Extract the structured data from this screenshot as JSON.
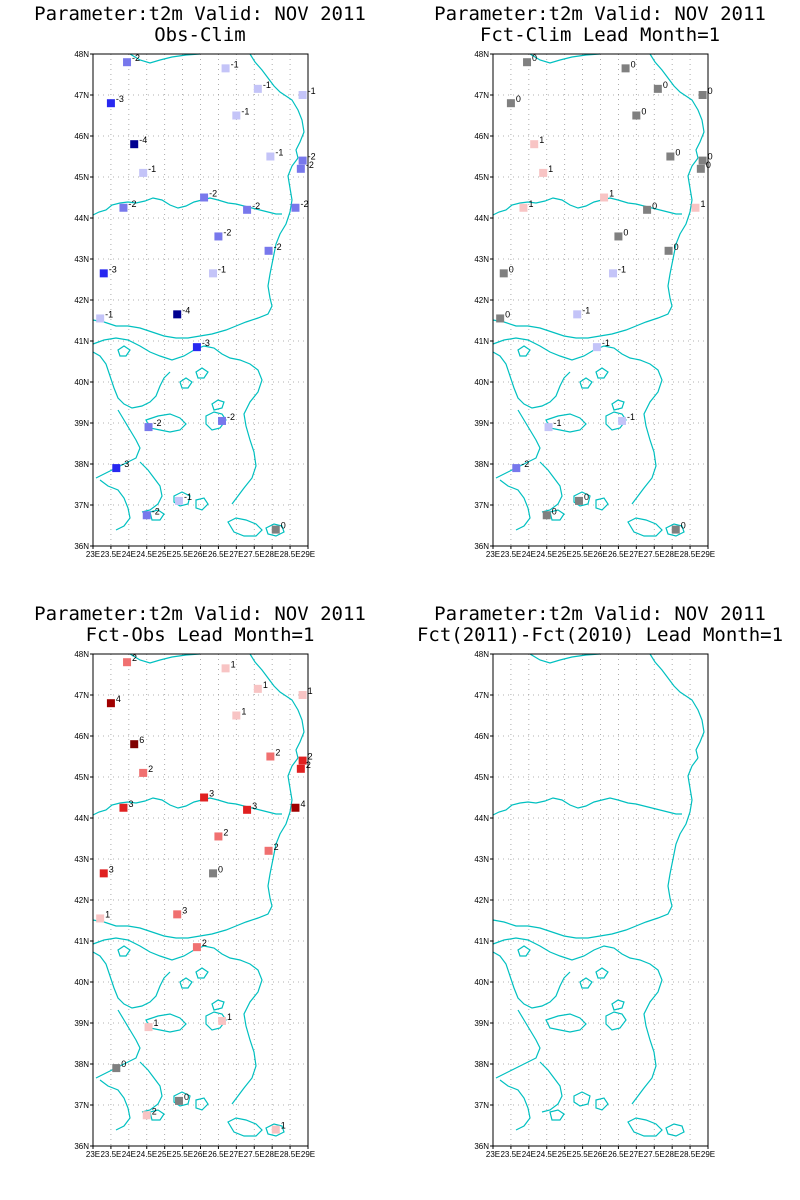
{
  "axes": {
    "lat_labels": [
      "48N",
      "47N",
      "46N",
      "45N",
      "44N",
      "43N",
      "42N",
      "41N",
      "40N",
      "39N",
      "38N",
      "37N",
      "36N"
    ],
    "lon_labels": [
      "23E",
      "23.5E",
      "24E",
      "24.5E",
      "25E",
      "25.5E",
      "26E",
      "26.5E",
      "27E",
      "27.5E",
      "28E",
      "28.5E",
      "29E"
    ],
    "lat_range": [
      36,
      48
    ],
    "lon_range": [
      23,
      29
    ],
    "grid": true
  },
  "colors": {
    "coast": "#00c0c0",
    "grid": "#999999",
    "neutral": "#808080",
    "blue_1": "#c4c4f8",
    "blue_2": "#7878ec",
    "blue_3": "#2828f0",
    "blue_4": "#000090",
    "red_1": "#f8c4c4",
    "red_2": "#f07070",
    "red_3": "#e02020",
    "red_4": "#a00000",
    "red_5": "#800000"
  },
  "stations": [
    {
      "lat": 47.8,
      "lon": 23.95
    },
    {
      "lat": 46.8,
      "lon": 23.5
    },
    {
      "lat": 45.8,
      "lon": 24.15
    },
    {
      "lat": 45.1,
      "lon": 24.4
    },
    {
      "lat": 44.25,
      "lon": 23.85
    },
    {
      "lat": 42.65,
      "lon": 23.3
    },
    {
      "lat": 41.55,
      "lon": 23.2
    },
    {
      "lat": 41.65,
      "lon": 25.35
    },
    {
      "lat": 40.85,
      "lon": 25.9
    },
    {
      "lat": 38.9,
      "lon": 24.55
    },
    {
      "lat": 37.9,
      "lon": 23.65
    },
    {
      "lat": 36.75,
      "lon": 24.5
    },
    {
      "lat": 37.1,
      "lon": 25.4
    },
    {
      "lat": 39.05,
      "lon": 26.6
    },
    {
      "lat": 36.4,
      "lon": 28.1
    },
    {
      "lat": 44.5,
      "lon": 26.1
    },
    {
      "lat": 43.55,
      "lon": 26.5
    },
    {
      "lat": 42.65,
      "lon": 26.35
    },
    {
      "lat": 44.2,
      "lon": 27.3
    },
    {
      "lat": 43.2,
      "lon": 27.9
    },
    {
      "lat": 44.25,
      "lon": 28.65
    },
    {
      "lat": 45.5,
      "lon": 27.95
    },
    {
      "lat": 45.4,
      "lon": 28.85
    },
    {
      "lat": 45.2,
      "lon": 28.8
    },
    {
      "lat": 46.5,
      "lon": 27.0
    },
    {
      "lat": 47.15,
      "lon": 27.6
    },
    {
      "lat": 47.0,
      "lon": 28.85
    },
    {
      "lat": 47.65,
      "lon": 26.7
    }
  ],
  "panels": [
    {
      "title1": "Parameter:t2m Valid: NOV 2011",
      "title2": "Obs-Clim",
      "labels": [
        "-2",
        "-3",
        "-4",
        "-1",
        "-2",
        "-3",
        "-1",
        "-4",
        "-3",
        "-2",
        "-3",
        "-2",
        "-1",
        "-2",
        "0",
        "-2",
        "-2",
        "-1",
        "-2",
        "-2",
        "-2",
        "-1",
        "-2",
        "-2",
        "-1",
        "-1",
        "-1",
        "-1"
      ],
      "colors": [
        "blue_2",
        "blue_3",
        "blue_4",
        "blue_1",
        "blue_2",
        "blue_3",
        "blue_1",
        "blue_4",
        "blue_3",
        "blue_2",
        "blue_3",
        "blue_2",
        "blue_1",
        "blue_2",
        "neutral",
        "blue_2",
        "blue_2",
        "blue_1",
        "blue_2",
        "blue_2",
        "blue_2",
        "blue_1",
        "blue_2",
        "blue_2",
        "blue_1",
        "blue_1",
        "blue_1",
        "blue_1"
      ]
    },
    {
      "title1": "Parameter:t2m Valid: NOV 2011",
      "title2": "Fct-Clim Lead Month=1",
      "labels": [
        "0",
        "0",
        "1",
        "1",
        "1",
        "0",
        "0",
        "-1",
        "-1",
        "-1",
        "-2",
        "0",
        "0",
        "-1",
        "0",
        "1",
        "0",
        "-1",
        "0",
        "0",
        "1",
        "0",
        "0",
        "0",
        "0",
        "0",
        "0",
        "0"
      ],
      "colors": [
        "neutral",
        "neutral",
        "red_1",
        "red_1",
        "red_1",
        "neutral",
        "neutral",
        "blue_1",
        "blue_1",
        "blue_1",
        "blue_2",
        "neutral",
        "neutral",
        "blue_1",
        "neutral",
        "red_1",
        "neutral",
        "blue_1",
        "neutral",
        "neutral",
        "red_1",
        "neutral",
        "neutral",
        "neutral",
        "neutral",
        "neutral",
        "neutral",
        "neutral"
      ]
    },
    {
      "title1": "Parameter:t2m Valid: NOV 2011",
      "title2": "Fct-Obs Lead Month=1",
      "labels": [
        "2",
        "4",
        "6",
        "2",
        "3",
        "3",
        "1",
        "3",
        "2",
        "1",
        "0",
        "2",
        "0",
        "1",
        "1",
        "3",
        "2",
        "0",
        "3",
        "2",
        "4",
        "2",
        "2",
        "2",
        "1",
        "1",
        "1",
        "1"
      ],
      "colors": [
        "red_2",
        "red_4",
        "red_5",
        "red_2",
        "red_3",
        "red_3",
        "red_1",
        "red_2",
        "red_2",
        "red_1",
        "neutral",
        "red_1",
        "neutral",
        "red_1",
        "red_1",
        "red_3",
        "red_2",
        "neutral",
        "red_3",
        "red_2",
        "red_4",
        "red_2",
        "red_3",
        "red_3",
        "red_1",
        "red_1",
        "red_1",
        "red_1"
      ]
    },
    {
      "title1": "Parameter:t2m Valid: NOV 2011",
      "title2": "Fct(2011)-Fct(2010) Lead Month=1",
      "labels": [],
      "colors": []
    }
  ]
}
